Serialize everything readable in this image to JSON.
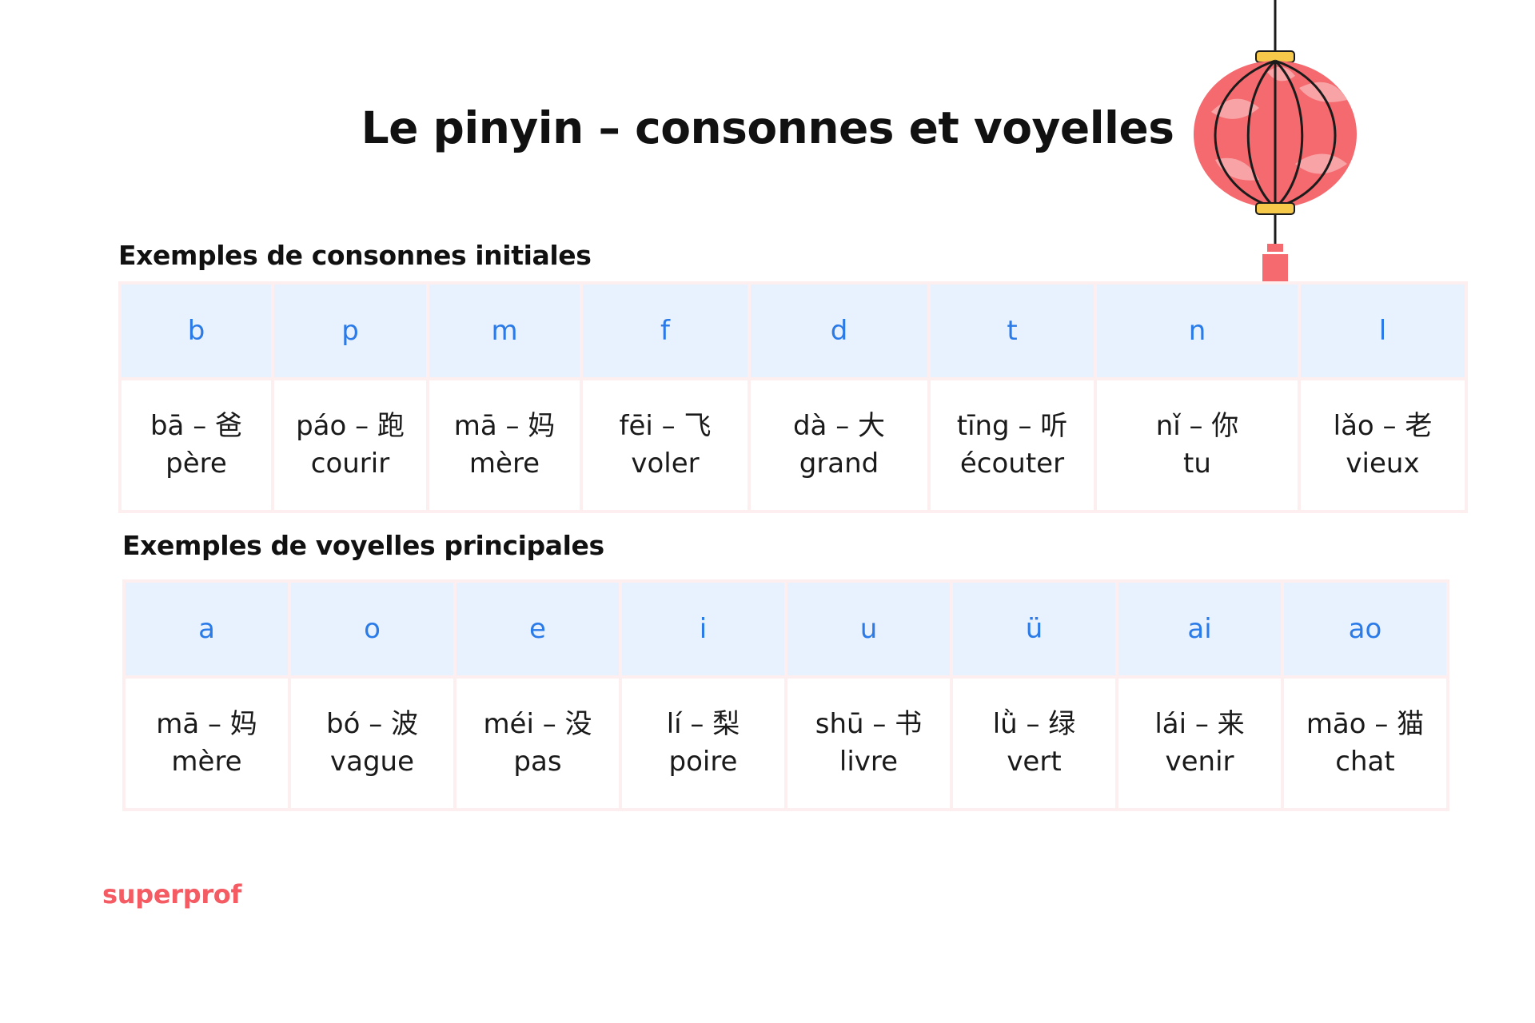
{
  "title": "Le pinyin – consonnes et voyelles",
  "consonants": {
    "heading": "Exemples de consonnes initiales",
    "columns": [
      {
        "letter": "b",
        "word": "bā – 爸",
        "meaning": "père"
      },
      {
        "letter": "p",
        "word": "páo – 跑",
        "meaning": "courir"
      },
      {
        "letter": "m",
        "word": "mā – 妈",
        "meaning": "mère"
      },
      {
        "letter": "f",
        "word": "fēi – 飞",
        "meaning": "voler"
      },
      {
        "letter": "d",
        "word": "dà – 大",
        "meaning": "grand"
      },
      {
        "letter": "t",
        "word": "tīng – 听",
        "meaning": "écouter"
      },
      {
        "letter": "n",
        "word": "nǐ – 你",
        "meaning": "tu"
      },
      {
        "letter": "l",
        "word": "lǎo – 老",
        "meaning": "vieux"
      }
    ]
  },
  "vowels": {
    "heading": "Exemples de voyelles principales",
    "columns": [
      {
        "letter": "a",
        "word": "mā – 妈",
        "meaning": "mère"
      },
      {
        "letter": "o",
        "word": "bó – 波",
        "meaning": "vague"
      },
      {
        "letter": "e",
        "word": "méi – 没",
        "meaning": "pas"
      },
      {
        "letter": "i",
        "word": "lí – 梨",
        "meaning": "poire"
      },
      {
        "letter": "u",
        "word": "shū – 书",
        "meaning": "livre"
      },
      {
        "letter": "ü",
        "word": "lǜ – 绿",
        "meaning": "vert"
      },
      {
        "letter": "ai",
        "word": "lái – 来",
        "meaning": "venir"
      },
      {
        "letter": "ao",
        "word": "māo – 猫",
        "meaning": "chat"
      }
    ]
  },
  "brand": "superprof",
  "colors": {
    "header_bg": "#e8f1fe",
    "header_text": "#2a7ae8",
    "table_border": "#fdeef0",
    "brand": "#f45b63",
    "lantern": "#f46a6e"
  },
  "decoration": "lantern-icon"
}
